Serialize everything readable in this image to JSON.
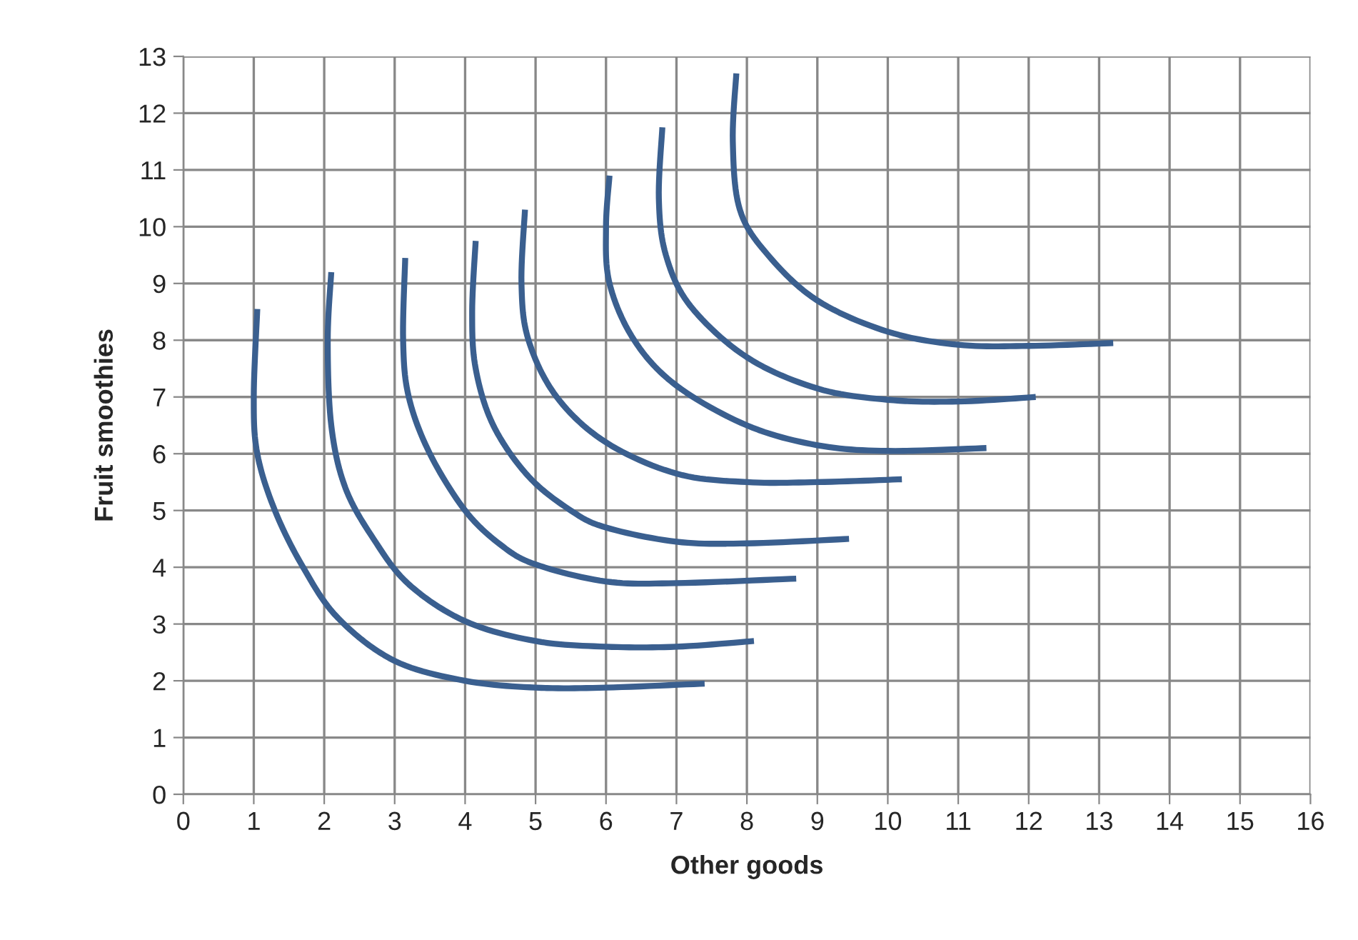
{
  "chart_data": {
    "type": "line",
    "xlabel": "Other goods",
    "ylabel": "Fruit smoothies",
    "xlim": [
      0,
      16
    ],
    "xticks": [
      0,
      1,
      2,
      3,
      4,
      5,
      6,
      7,
      8,
      9,
      10,
      11,
      12,
      13,
      14,
      15,
      16
    ],
    "ylim": [
      0,
      13
    ],
    "yticks": [
      0,
      1,
      2,
      3,
      4,
      5,
      6,
      7,
      8,
      9,
      10,
      11,
      12,
      13
    ],
    "grid": true,
    "marker": "none",
    "line_style": "solid",
    "series": [
      {
        "color": "#3a5f8f",
        "x": [
          1.05,
          1.0,
          1.05,
          1.3,
          1.7,
          2.2,
          3,
          4,
          5,
          6,
          7.4
        ],
        "values": [
          8.55,
          7,
          6,
          5,
          4,
          3.1,
          2.35,
          2.0,
          1.88,
          1.88,
          1.95
        ]
      },
      {
        "color": "#3a5f8f",
        "x": [
          2.1,
          2.05,
          2.1,
          2.3,
          2.7,
          3.2,
          4,
          5,
          6,
          7,
          8.1
        ],
        "values": [
          9.2,
          8,
          6.5,
          5.4,
          4.5,
          3.7,
          3.05,
          2.7,
          2.6,
          2.6,
          2.7
        ]
      },
      {
        "color": "#3a5f8f",
        "x": [
          3.15,
          3.12,
          3.2,
          3.5,
          4,
          4.5,
          5,
          6,
          7,
          8.7
        ],
        "values": [
          9.45,
          8,
          7,
          6,
          5,
          4.4,
          4.05,
          3.75,
          3.72,
          3.8
        ]
      },
      {
        "color": "#3a5f8f",
        "x": [
          4.15,
          4.1,
          4.15,
          4.4,
          4.9,
          5.5,
          6,
          7,
          8,
          9.45
        ],
        "values": [
          9.75,
          8.5,
          7.5,
          6.5,
          5.6,
          5.0,
          4.7,
          4.45,
          4.42,
          4.5
        ]
      },
      {
        "color": "#3a5f8f",
        "x": [
          4.85,
          4.8,
          4.9,
          5.3,
          6,
          7,
          8,
          9,
          10.2
        ],
        "values": [
          10.3,
          9,
          8,
          7,
          6.2,
          5.65,
          5.5,
          5.5,
          5.55
        ]
      },
      {
        "color": "#3a5f8f",
        "x": [
          6.05,
          6.0,
          6.05,
          6.4,
          7,
          8,
          9,
          10,
          11.4
        ],
        "values": [
          10.9,
          10,
          9,
          8,
          7.2,
          6.5,
          6.15,
          6.05,
          6.1
        ]
      },
      {
        "color": "#3a5f8f",
        "x": [
          6.8,
          6.75,
          6.85,
          7.2,
          8,
          9,
          10,
          11,
          12.1
        ],
        "values": [
          11.75,
          10.5,
          9.5,
          8.6,
          7.7,
          7.15,
          6.95,
          6.92,
          7.0
        ]
      },
      {
        "color": "#3a5f8f",
        "x": [
          7.85,
          7.8,
          7.9,
          8.3,
          9,
          10,
          11,
          12,
          13.2
        ],
        "values": [
          12.7,
          11.5,
          10.3,
          9.5,
          8.7,
          8.15,
          7.92,
          7.9,
          7.95
        ]
      }
    ]
  }
}
